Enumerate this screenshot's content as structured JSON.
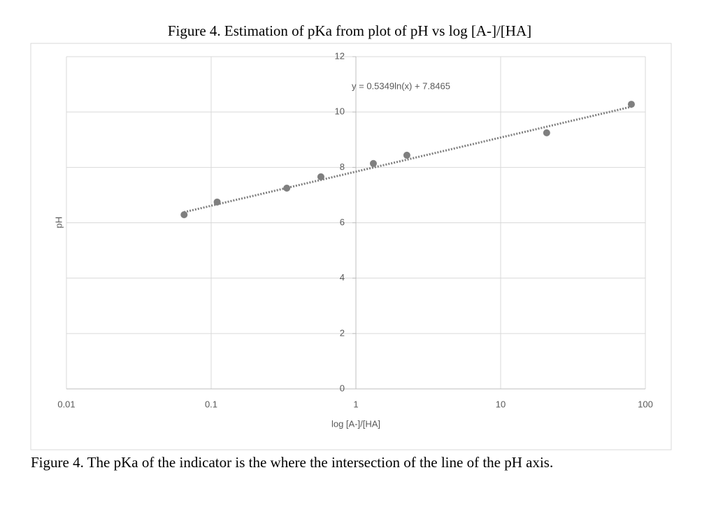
{
  "chart_data": {
    "type": "scatter",
    "title": "Figure 4. Estimation of pKa from plot of pH vs log [A-]/[HA]",
    "caption": "Figure 4. The pKa of the indicator is the where the intersection of the line of the pH axis.",
    "x_label": "log [A-]/[HA]",
    "y_label": "pH",
    "x": [
      0.065,
      0.11,
      0.333,
      0.573,
      1.32,
      2.25,
      20.8,
      80
    ],
    "values": [
      6.29,
      6.75,
      7.25,
      7.66,
      8.14,
      8.44,
      9.25,
      10.28
    ],
    "color": "#7f7f7f",
    "xlim": [
      0.01,
      100
    ],
    "xticks": [
      0.01,
      0.1,
      1,
      10,
      100
    ],
    "x_log": true,
    "ylim": [
      0,
      12
    ],
    "yticks": [
      0,
      2,
      4,
      6,
      8,
      10,
      12
    ],
    "grid": true,
    "trendline": {
      "a": 0.5349,
      "b": 7.8465,
      "label": "y = 0.5349ln(x) + 7.8465"
    }
  }
}
